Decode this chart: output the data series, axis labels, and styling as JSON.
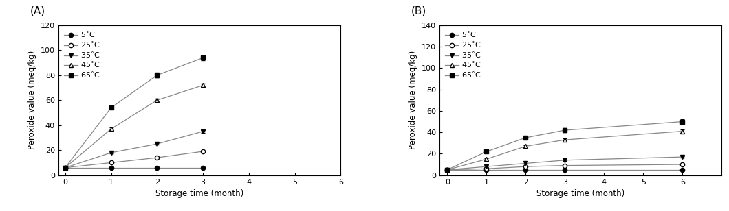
{
  "panel_A": {
    "title": "(A)",
    "xlabel": "Storage time (month)",
    "ylabel": "Peroxide value (meq/kg)",
    "xlim": [
      -0.15,
      6
    ],
    "ylim": [
      0,
      120
    ],
    "yticks": [
      0,
      20,
      40,
      60,
      80,
      100,
      120
    ],
    "xticks": [
      0,
      1,
      2,
      3,
      4,
      5,
      6
    ],
    "series": [
      {
        "label": "5",
        "x": [
          0,
          1,
          2,
          3
        ],
        "y": [
          6,
          6,
          6,
          6
        ],
        "yerr": [
          0.3,
          0.3,
          0.3,
          0.3
        ],
        "marker": "o",
        "fillstyle": "full",
        "linestyle": "-"
      },
      {
        "label": "25",
        "x": [
          0,
          1,
          2,
          3
        ],
        "y": [
          6,
          10,
          14,
          19
        ],
        "yerr": [
          0.3,
          0.5,
          0.5,
          0.7
        ],
        "marker": "o",
        "fillstyle": "none",
        "linestyle": "-"
      },
      {
        "label": "35",
        "x": [
          0,
          1,
          2,
          3
        ],
        "y": [
          6,
          18,
          25,
          35
        ],
        "yerr": [
          0.3,
          0.5,
          0.7,
          1.0
        ],
        "marker": "v",
        "fillstyle": "full",
        "linestyle": "-"
      },
      {
        "label": "45",
        "x": [
          0,
          1,
          2,
          3
        ],
        "y": [
          6,
          37,
          60,
          72
        ],
        "yerr": [
          0.3,
          1.0,
          1.5,
          1.5
        ],
        "marker": "^",
        "fillstyle": "none",
        "linestyle": "-"
      },
      {
        "label": "65",
        "x": [
          0,
          1,
          2,
          3
        ],
        "y": [
          6,
          54,
          80,
          94
        ],
        "yerr": [
          0.3,
          1.0,
          2.0,
          2.0
        ],
        "marker": "s",
        "fillstyle": "full",
        "linestyle": "-"
      }
    ]
  },
  "panel_B": {
    "title": "(B)",
    "xlabel": "Storage time (month)",
    "ylabel": "Peroxide value (meq/kg)",
    "xlim": [
      -0.2,
      7
    ],
    "ylim": [
      0,
      140
    ],
    "yticks": [
      0,
      20,
      40,
      60,
      80,
      100,
      120,
      140
    ],
    "xticks": [
      0,
      1,
      2,
      3,
      4,
      5,
      6
    ],
    "series": [
      {
        "label": "5",
        "x": [
          0,
          1,
          2,
          3,
          6
        ],
        "y": [
          5,
          5,
          5,
          5,
          5
        ],
        "yerr": [
          0.3,
          0.3,
          0.3,
          0.3,
          0.3
        ],
        "marker": "o",
        "fillstyle": "full",
        "linestyle": "-"
      },
      {
        "label": "25",
        "x": [
          0,
          1,
          2,
          3,
          6
        ],
        "y": [
          5,
          6,
          8,
          9,
          10
        ],
        "yerr": [
          0.3,
          0.3,
          0.3,
          0.5,
          0.5
        ],
        "marker": "o",
        "fillstyle": "none",
        "linestyle": "-"
      },
      {
        "label": "35",
        "x": [
          0,
          1,
          2,
          3,
          6
        ],
        "y": [
          5,
          8,
          11,
          14,
          17
        ],
        "yerr": [
          0.3,
          0.5,
          0.5,
          0.7,
          0.7
        ],
        "marker": "v",
        "fillstyle": "full",
        "linestyle": "-"
      },
      {
        "label": "45",
        "x": [
          0,
          1,
          2,
          3,
          6
        ],
        "y": [
          5,
          15,
          27,
          33,
          41
        ],
        "yerr": [
          0.3,
          0.7,
          1.0,
          1.5,
          1.5
        ],
        "marker": "^",
        "fillstyle": "none",
        "linestyle": "-"
      },
      {
        "label": "65",
        "x": [
          0,
          1,
          2,
          3,
          6
        ],
        "y": [
          5,
          22,
          35,
          42,
          50
        ],
        "yerr": [
          0.3,
          1.0,
          1.5,
          2.0,
          2.0
        ],
        "marker": "s",
        "fillstyle": "full",
        "linestyle": "-"
      }
    ]
  },
  "figure_bg": "#ffffff",
  "line_color": "#888888",
  "fontsize_label": 8.5,
  "fontsize_tick": 8,
  "fontsize_title": 11,
  "fontsize_legend": 8,
  "markersize": 4.5,
  "linewidth": 0.9
}
